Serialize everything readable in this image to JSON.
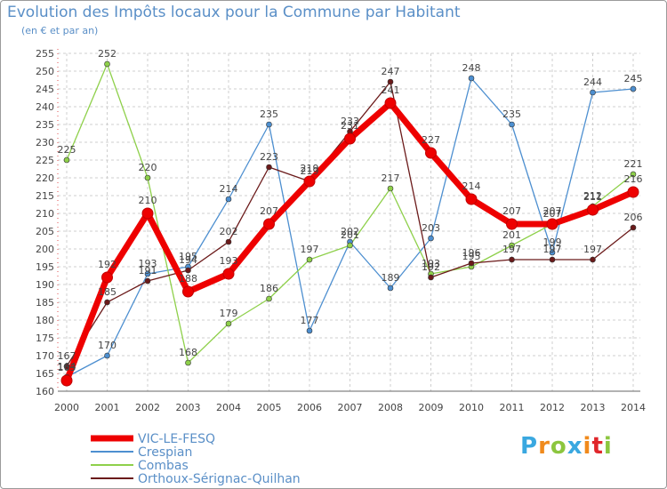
{
  "chart_data": {
    "type": "line",
    "title": "Evolution des Impôts locaux pour la Commune par Habitant",
    "subtitle": "(en € et par an)",
    "x": [
      2000,
      2001,
      2002,
      2003,
      2004,
      2005,
      2006,
      2007,
      2008,
      2009,
      2010,
      2011,
      2012,
      2013,
      2014
    ],
    "ylim": [
      160,
      255
    ],
    "ytick_step": 5,
    "grid": true,
    "legend_position": "bottom-left",
    "series": [
      {
        "name": "Crespian",
        "color": "#4d8fd0",
        "values": [
          164,
          170,
          193,
          195,
          214,
          235,
          177,
          202,
          189,
          203,
          248,
          235,
          199,
          244,
          245
        ]
      },
      {
        "name": "Combas",
        "color": "#8ed04a",
        "values": [
          225,
          252,
          220,
          168,
          179,
          186,
          197,
          201,
          217,
          193,
          195,
          201,
          207,
          212,
          221
        ]
      },
      {
        "name": "Orthoux-Sérignac-Quilhan",
        "color": "#6b1a1a",
        "values": [
          167,
          185,
          191,
          194,
          202,
          223,
          219,
          233,
          247,
          192,
          196,
          197,
          197,
          197,
          206
        ]
      },
      {
        "name": "VIC-LE-FESQ",
        "color": "#ee0000",
        "values": [
          163,
          192,
          210,
          188,
          193,
          207,
          219,
          231,
          241,
          227,
          214,
          207,
          207,
          211,
          216
        ]
      }
    ],
    "legend": [
      "VIC-LE-FESQ",
      "Crespian",
      "Combas",
      "Orthoux-Sérignac-Quilhan"
    ]
  },
  "logo": {
    "letters": [
      "P",
      "r",
      "o",
      "x",
      "i",
      "t",
      "i"
    ],
    "colors": [
      "#3aa8e0",
      "#f08a1c",
      "#8cc63f",
      "#3aa8e0",
      "#f08a1c",
      "#e0262b",
      "#8cc63f"
    ]
  }
}
